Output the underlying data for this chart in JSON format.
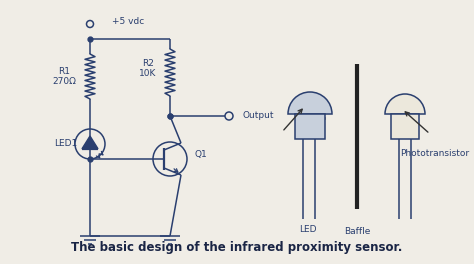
{
  "bg_color": "#f0ede6",
  "line_color": "#2a3f6f",
  "text_color": "#2a3f6f",
  "title": "The basic design of the infrared proximity sensor.",
  "title_fontsize": 8.5,
  "components": {
    "vcc_label": "+5 vdc",
    "r1_label": "R1\n270Ω",
    "r2_label": "R2\n10K",
    "led1_label": "LED1",
    "q1_label": "Q1",
    "output_label": "Output",
    "led_label": "LED",
    "phototransistor_label": "Phototransistor",
    "baffle_label": "Baffle"
  }
}
